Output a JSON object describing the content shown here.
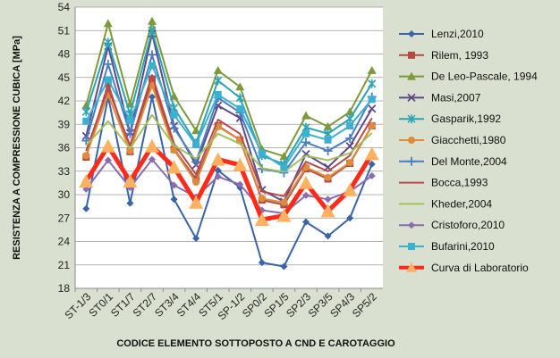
{
  "chart_data": {
    "type": "line",
    "title": "",
    "ylabel": "RESISTENZA A COMPRESSIONE CUBICA  [MPa]",
    "xlabel": "CODICE ELEMENTO SOTTOPOSTO A CND E CAROTAGGIO",
    "ylim": [
      18,
      54
    ],
    "yticks": [
      18,
      21,
      24,
      27,
      30,
      33,
      36,
      39,
      42,
      45,
      48,
      51,
      54
    ],
    "grid": true,
    "legend_position": "right",
    "categories": [
      "ST-1/3",
      "ST0/1",
      "ST1/7",
      "ST2/7",
      "ST3/4",
      "ST4/4",
      "ST5/1",
      "SP-1/2",
      "SP0/2",
      "SP1/5",
      "SP2/3",
      "SP3/5",
      "SP4/3",
      "SP5/2"
    ],
    "series": [
      {
        "name": "Lenzi,2010",
        "color": "#3a64a8",
        "marker": "diamond",
        "width": 2,
        "values": [
          28.2,
          42.5,
          28.9,
          42.5,
          29.4,
          24.4,
          33.1,
          30.9,
          21.3,
          20.8,
          26.5,
          24.7,
          27.0,
          33.9
        ]
      },
      {
        "name": "Rilem, 1993",
        "color": "#b54a3e",
        "marker": "square",
        "width": 2,
        "values": [
          34.8,
          44.2,
          35.5,
          44.8,
          35.8,
          32.0,
          38.8,
          37.0,
          29.3,
          28.7,
          33.3,
          32.0,
          34.0,
          38.8
        ]
      },
      {
        "name": "De Leo-Pascale, 1994",
        "color": "#7c9a3c",
        "marker": "triangle",
        "width": 2,
        "values": [
          41.4,
          51.9,
          41.6,
          52.2,
          42.6,
          38.2,
          45.9,
          43.8,
          35.8,
          34.9,
          40.1,
          38.7,
          40.6,
          45.9
        ]
      },
      {
        "name": "Masi,2007",
        "color": "#5e4a87",
        "marker": "x",
        "width": 2,
        "values": [
          37.5,
          49.0,
          37.9,
          50.6,
          38.8,
          33.8,
          41.4,
          39.8,
          30.6,
          29.1,
          35.2,
          33.5,
          36.2,
          41.0
        ]
      },
      {
        "name": "Gasparik,1992",
        "color": "#2ba4b4",
        "marker": "asterisk",
        "width": 2,
        "values": [
          40.6,
          49.5,
          40.3,
          51.0,
          41.1,
          36.6,
          44.6,
          42.4,
          35.0,
          33.9,
          38.6,
          37.8,
          39.7,
          44.2
        ]
      },
      {
        "name": "Giacchetti,1980",
        "color": "#e08a3c",
        "marker": "circle",
        "width": 2,
        "values": [
          35.0,
          42.8,
          35.6,
          44.0,
          35.7,
          31.6,
          38.7,
          37.0,
          29.5,
          29.0,
          33.5,
          32.2,
          34.1,
          38.8
        ]
      },
      {
        "name": "Del Monte,2004",
        "color": "#4a7ec4",
        "marker": "plus",
        "width": 2,
        "values": [
          36.9,
          46.7,
          37.8,
          47.9,
          38.5,
          34.2,
          42.4,
          40.5,
          33.3,
          32.8,
          36.7,
          35.6,
          37.2,
          42.5
        ]
      },
      {
        "name": "Bocca,1993",
        "color": "#b84a4a",
        "marker": "none",
        "width": 2,
        "values": [
          35.6,
          43.6,
          36.3,
          45.3,
          36.5,
          32.6,
          39.6,
          37.8,
          30.4,
          29.8,
          34.2,
          33.0,
          35.0,
          39.8
        ]
      },
      {
        "name": "Kheder,2004",
        "color": "#a0c25a",
        "marker": "none",
        "width": 2,
        "values": [
          36.3,
          39.4,
          35.9,
          40.2,
          36.3,
          34.6,
          37.8,
          36.5,
          33.4,
          32.9,
          35.0,
          34.4,
          35.3,
          37.9
        ]
      },
      {
        "name": "Cristoforo,2010",
        "color": "#8a6cb0",
        "marker": "diamond",
        "width": 2,
        "values": [
          30.7,
          34.4,
          30.9,
          34.5,
          31.2,
          29.7,
          32.3,
          31.3,
          28.0,
          27.6,
          29.9,
          29.4,
          30.4,
          32.4
        ]
      },
      {
        "name": "Bufarini,2010",
        "color": "#3cb0d0",
        "marker": "square",
        "width": 2,
        "values": [
          39.4,
          44.7,
          39.5,
          46.5,
          40.2,
          36.4,
          42.8,
          41.0,
          35.3,
          33.5,
          37.8,
          37.0,
          38.8,
          42.2
        ]
      },
      {
        "name": "Curva di Laboratorio",
        "color": "#ff2a1a",
        "marker": "triangle",
        "markerColor": "#ffb060",
        "width": 5,
        "values": [
          31.7,
          36.2,
          31.7,
          36.2,
          33.5,
          29.0,
          34.5,
          33.8,
          26.8,
          27.3,
          31.5,
          27.9,
          30.6,
          35.2
        ]
      }
    ]
  }
}
